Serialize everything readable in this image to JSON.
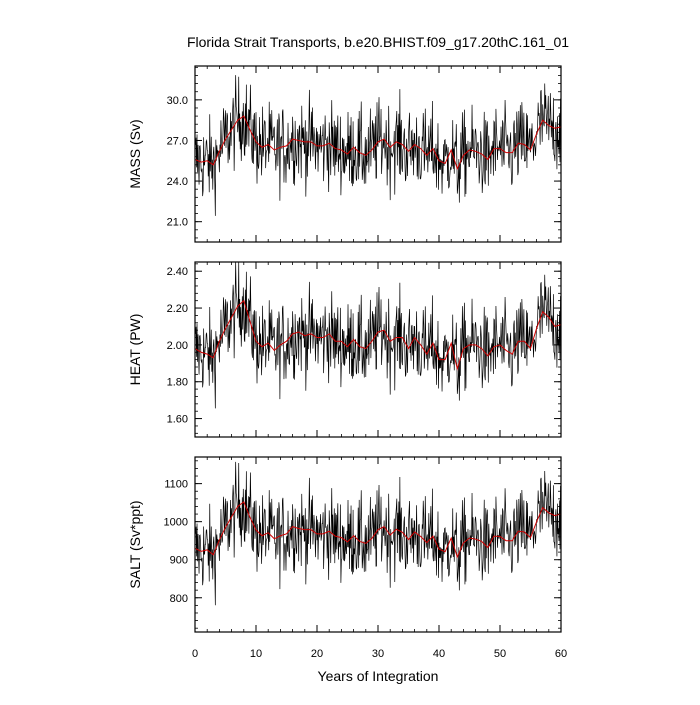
{
  "chart_data": {
    "type": "line",
    "title": "Florida Strait Transports, b.e20.BHIST.f09_g17.20thC.161_01",
    "xlabel": "Years of Integration",
    "xlim": [
      0,
      60
    ],
    "xticks": [
      "0",
      "10",
      "20",
      "30",
      "40",
      "50",
      "60"
    ],
    "raw_color": "#000000",
    "smooth_color": "#d00000",
    "panels": [
      {
        "ylabel": "MASS (Sv)",
        "ylim": [
          19.5,
          32.5
        ],
        "ytick_values": [
          21,
          24,
          27,
          30
        ],
        "ytick_labels": [
          "21.0",
          "24.0",
          "27.0",
          "30.0"
        ],
        "smooth_x": [
          0,
          1,
          2,
          3,
          4,
          5,
          6,
          7,
          8,
          9,
          10,
          11,
          12,
          13,
          14,
          15,
          16,
          17,
          18,
          19,
          20,
          21,
          22,
          23,
          24,
          25,
          26,
          27,
          28,
          29,
          30,
          31,
          32,
          33,
          34,
          35,
          36,
          37,
          38,
          39,
          40,
          41,
          42,
          43,
          44,
          45,
          46,
          47,
          48,
          49,
          50,
          51,
          52,
          53,
          54,
          55,
          56,
          57,
          58,
          59,
          60
        ],
        "smooth": [
          25.6,
          25.4,
          25.5,
          25.2,
          26.2,
          27.1,
          27.8,
          28.5,
          28.8,
          27.8,
          26.9,
          26.5,
          26.7,
          26.3,
          26.5,
          26.6,
          27.1,
          27.0,
          26.9,
          26.9,
          26.6,
          26.6,
          26.8,
          26.4,
          26.3,
          26.0,
          26.5,
          26.1,
          25.9,
          26.3,
          26.9,
          27.1,
          26.5,
          26.9,
          26.7,
          26.2,
          26.7,
          26.4,
          25.9,
          26.4,
          25.5,
          25.3,
          26.3,
          24.9,
          25.9,
          26.3,
          26.2,
          26.0,
          25.6,
          26.4,
          26.4,
          26.1,
          26.1,
          26.8,
          26.7,
          26.3,
          27.5,
          28.5,
          28.1,
          27.9,
          28.0
        ]
      },
      {
        "ylabel": "HEAT (PW)",
        "ylim": [
          1.5,
          2.45
        ],
        "ytick_values": [
          1.6,
          1.8,
          2.0,
          2.2,
          2.4
        ],
        "ytick_labels": [
          "1.60",
          "1.80",
          "2.00",
          "2.20",
          "2.40"
        ],
        "smooth_x": [
          0,
          1,
          2,
          3,
          4,
          5,
          6,
          7,
          8,
          9,
          10,
          11,
          12,
          13,
          14,
          15,
          16,
          17,
          18,
          19,
          20,
          21,
          22,
          23,
          24,
          25,
          26,
          27,
          28,
          29,
          30,
          31,
          32,
          33,
          34,
          35,
          36,
          37,
          38,
          39,
          40,
          41,
          42,
          43,
          44,
          45,
          46,
          47,
          48,
          49,
          50,
          51,
          52,
          53,
          54,
          55,
          56,
          57,
          58,
          59,
          60
        ],
        "smooth": [
          1.98,
          1.96,
          1.95,
          1.93,
          2.02,
          2.09,
          2.15,
          2.21,
          2.24,
          2.13,
          2.02,
          1.99,
          2.01,
          1.97,
          2.0,
          2.02,
          2.06,
          2.07,
          2.05,
          2.06,
          2.04,
          2.04,
          2.06,
          2.02,
          2.02,
          1.99,
          2.03,
          1.99,
          1.98,
          2.02,
          2.07,
          2.08,
          2.02,
          2.04,
          2.04,
          1.98,
          2.04,
          2.0,
          1.95,
          2.01,
          1.92,
          1.92,
          2.01,
          1.87,
          1.98,
          2.0,
          2.0,
          1.98,
          1.94,
          1.99,
          2.0,
          1.97,
          1.95,
          2.02,
          2.02,
          1.98,
          2.09,
          2.18,
          2.15,
          2.1,
          2.11
        ]
      },
      {
        "ylabel": "SALT (Sv*ppt)",
        "ylim": [
          710,
          1170
        ],
        "ytick_values": [
          800,
          900,
          1000,
          1100
        ],
        "ytick_labels": [
          "800",
          "900",
          "1000",
          "1100"
        ],
        "smooth_x": [
          0,
          1,
          2,
          3,
          4,
          5,
          6,
          7,
          8,
          9,
          10,
          11,
          12,
          13,
          14,
          15,
          16,
          17,
          18,
          19,
          20,
          21,
          22,
          23,
          24,
          25,
          26,
          27,
          28,
          29,
          30,
          31,
          32,
          33,
          34,
          35,
          36,
          37,
          38,
          39,
          40,
          41,
          42,
          43,
          44,
          45,
          46,
          47,
          48,
          49,
          50,
          51,
          52,
          53,
          54,
          55,
          56,
          57,
          58,
          59,
          60
        ],
        "smooth": [
          930,
          922,
          926,
          913,
          952,
          985,
          1013,
          1040,
          1052,
          1012,
          978,
          963,
          971,
          955,
          963,
          968,
          987,
          982,
          979,
          979,
          968,
          968,
          975,
          962,
          958,
          947,
          963,
          948,
          943,
          956,
          979,
          987,
          965,
          980,
          972,
          953,
          973,
          961,
          945,
          962,
          928,
          921,
          957,
          907,
          944,
          957,
          954,
          948,
          932,
          962,
          961,
          950,
          950,
          975,
          973,
          958,
          1000,
          1037,
          1023,
          1016,
          1020
        ]
      }
    ]
  }
}
